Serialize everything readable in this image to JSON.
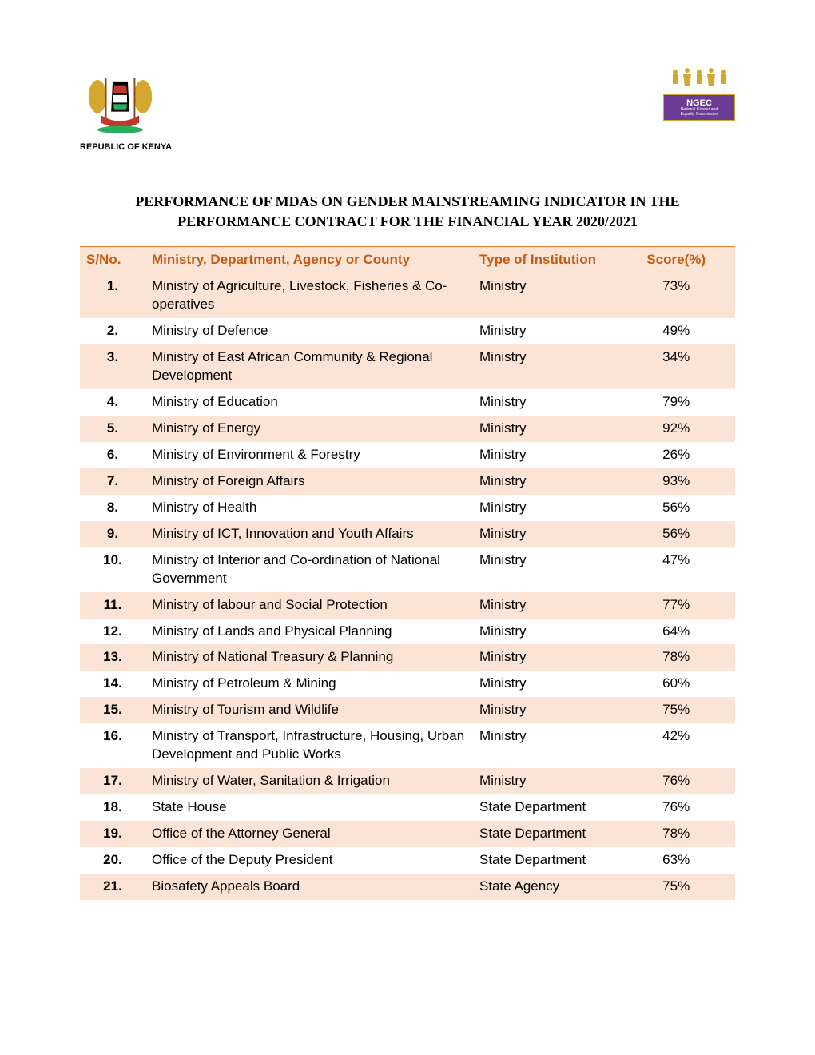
{
  "header": {
    "republic_label": "REPUBLIC OF KENYA",
    "ngec_label": "NGEC",
    "ngec_sub": "National Gender and Equality Commission"
  },
  "title": "PERFORMANCE OF MDAS ON GENDER MAINSTREAMING INDICATOR IN THE PERFORMANCE CONTRACT FOR THE FINANCIAL YEAR 2020/2021",
  "table": {
    "columns": {
      "sno": "S/No.",
      "name": "Ministry, Department, Agency or County",
      "type": "Type of Institution",
      "score": "Score(%)"
    },
    "header_color": "#c55a11",
    "header_bg": "#fbe4d5",
    "odd_row_bg": "#fbe4d5",
    "even_row_bg": "#ffffff",
    "border_color": "#ed7d31",
    "rows": [
      {
        "sno": "1.",
        "name": "Ministry of Agriculture, Livestock, Fisheries & Co-operatives",
        "type": "Ministry",
        "score": "73%"
      },
      {
        "sno": "2.",
        "name": "Ministry of Defence",
        "type": "Ministry",
        "score": "49%"
      },
      {
        "sno": "3.",
        "name": "Ministry of East African Community & Regional Development",
        "type": "Ministry",
        "score": "34%"
      },
      {
        "sno": "4.",
        "name": "Ministry of Education",
        "type": "Ministry",
        "score": "79%"
      },
      {
        "sno": "5.",
        "name": "Ministry of Energy",
        "type": "Ministry",
        "score": "92%"
      },
      {
        "sno": "6.",
        "name": "Ministry of Environment & Forestry",
        "type": "Ministry",
        "score": "26%"
      },
      {
        "sno": "7.",
        "name": "Ministry of Foreign Affairs",
        "type": "Ministry",
        "score": "93%"
      },
      {
        "sno": "8.",
        "name": "Ministry of Health",
        "type": "Ministry",
        "score": "56%"
      },
      {
        "sno": "9.",
        "name": "Ministry of ICT, Innovation and Youth Affairs",
        "type": "Ministry",
        "score": "56%"
      },
      {
        "sno": "10.",
        "name": "Ministry of Interior and Co-ordination of National Government",
        "type": "Ministry",
        "score": "47%"
      },
      {
        "sno": "11.",
        "name": "Ministry of labour and Social Protection",
        "type": "Ministry",
        "score": "77%"
      },
      {
        "sno": "12.",
        "name": "Ministry of Lands and Physical Planning",
        "type": "Ministry",
        "score": "64%"
      },
      {
        "sno": "13.",
        "name": "Ministry of National Treasury & Planning",
        "type": "Ministry",
        "score": "78%"
      },
      {
        "sno": "14.",
        "name": "Ministry of Petroleum & Mining",
        "type": "Ministry",
        "score": "60%"
      },
      {
        "sno": "15.",
        "name": "Ministry of Tourism and Wildlife",
        "type": "Ministry",
        "score": "75%"
      },
      {
        "sno": "16.",
        "name": "Ministry of Transport, Infrastructure, Housing, Urban Development and Public Works",
        "type": "Ministry",
        "score": "42%"
      },
      {
        "sno": "17.",
        "name": "Ministry of Water, Sanitation & Irrigation",
        "type": "Ministry",
        "score": "76%"
      },
      {
        "sno": "18.",
        "name": "State House",
        "type": "State Department",
        "score": "76%"
      },
      {
        "sno": "19.",
        "name": "Office of the Attorney General",
        "type": "State Department",
        "score": "78%"
      },
      {
        "sno": "20.",
        "name": "Office of the Deputy President",
        "type": "State Department",
        "score": "63%"
      },
      {
        "sno": "21.",
        "name": "Biosafety Appeals Board",
        "type": "State Agency",
        "score": "75%"
      }
    ]
  }
}
